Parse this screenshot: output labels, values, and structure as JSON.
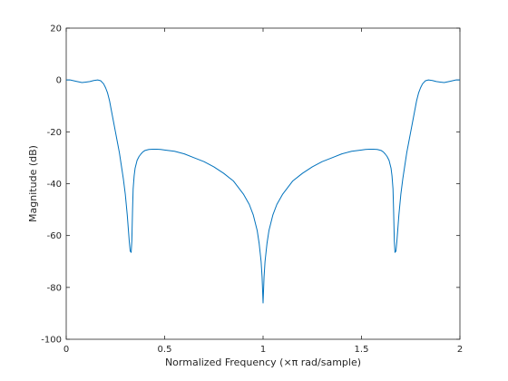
{
  "chart_data": {
    "type": "line",
    "title": "",
    "xlabel": "Normalized Frequency (×π rad/sample)",
    "ylabel": "Magnitude (dB)",
    "xlim": [
      0,
      2
    ],
    "ylim": [
      -100,
      20
    ],
    "xticks": [
      0,
      0.5,
      1,
      1.5,
      2
    ],
    "xtick_labels": [
      "0",
      "0.5",
      "1",
      "1.5",
      "2"
    ],
    "yticks": [
      20,
      0,
      -20,
      -40,
      -60,
      -80,
      -100
    ],
    "ytick_labels": [
      "20",
      "0",
      "-20",
      "-40",
      "-60",
      "-80",
      "-100"
    ],
    "grid": false,
    "series": [
      {
        "color": "#0072bd",
        "x": [
          0,
          0.02,
          0.05,
          0.08,
          0.1,
          0.12,
          0.14,
          0.16,
          0.175,
          0.19,
          0.2,
          0.21,
          0.22,
          0.23,
          0.24,
          0.25,
          0.26,
          0.27,
          0.28,
          0.29,
          0.3,
          0.31,
          0.315,
          0.32,
          0.325,
          0.33,
          0.3333,
          0.337,
          0.34,
          0.345,
          0.35,
          0.36,
          0.37,
          0.38,
          0.39,
          0.4,
          0.42,
          0.44,
          0.46,
          0.48,
          0.5,
          0.55,
          0.6,
          0.65,
          0.7,
          0.75,
          0.8,
          0.85,
          0.9,
          0.93,
          0.95,
          0.97,
          0.98,
          0.99,
          0.995,
          1.0,
          1.005,
          1.01,
          1.02,
          1.03,
          1.05,
          1.07,
          1.1,
          1.15,
          1.2,
          1.25,
          1.3,
          1.35,
          1.4,
          1.45,
          1.5,
          1.52,
          1.54,
          1.56,
          1.58,
          1.6,
          1.61,
          1.62,
          1.63,
          1.64,
          1.65,
          1.655,
          1.66,
          1.663,
          1.6667,
          1.67,
          1.675,
          1.68,
          1.685,
          1.69,
          1.7,
          1.71,
          1.72,
          1.73,
          1.74,
          1.75,
          1.76,
          1.77,
          1.78,
          1.79,
          1.8,
          1.81,
          1.825,
          1.84,
          1.86,
          1.88,
          1.9,
          1.92,
          1.95,
          1.98,
          2.0
        ],
        "y": [
          0,
          0,
          -0.5,
          -1,
          -0.8,
          -0.6,
          -0.2,
          0,
          -0.3,
          -1.5,
          -3,
          -5,
          -8,
          -12,
          -16,
          -20,
          -24,
          -28,
          -33,
          -38,
          -44,
          -52,
          -57,
          -62,
          -66,
          -66.5,
          -62,
          -50,
          -42,
          -37,
          -34,
          -31,
          -29.5,
          -28.5,
          -27.7,
          -27.2,
          -26.8,
          -26.7,
          -26.7,
          -26.8,
          -27,
          -27.5,
          -28.5,
          -30,
          -31.5,
          -33.5,
          -36,
          -39,
          -44,
          -48,
          -52,
          -58,
          -63,
          -70,
          -76,
          -86,
          -76,
          -70,
          -63,
          -58,
          -52,
          -48,
          -44,
          -39,
          -36,
          -33.5,
          -31.5,
          -30,
          -28.5,
          -27.5,
          -27,
          -26.8,
          -26.7,
          -26.7,
          -26.8,
          -27.2,
          -27.7,
          -28.5,
          -29.5,
          -31,
          -34,
          -37,
          -42,
          -50,
          -62,
          -66.5,
          -66,
          -62,
          -57,
          -52,
          -44,
          -38,
          -33,
          -28,
          -24,
          -20,
          -16,
          -12,
          -8,
          -5,
          -3,
          -1.5,
          -0.3,
          0,
          -0.2,
          -0.6,
          -0.8,
          -1,
          -0.5,
          0,
          0
        ]
      }
    ]
  }
}
